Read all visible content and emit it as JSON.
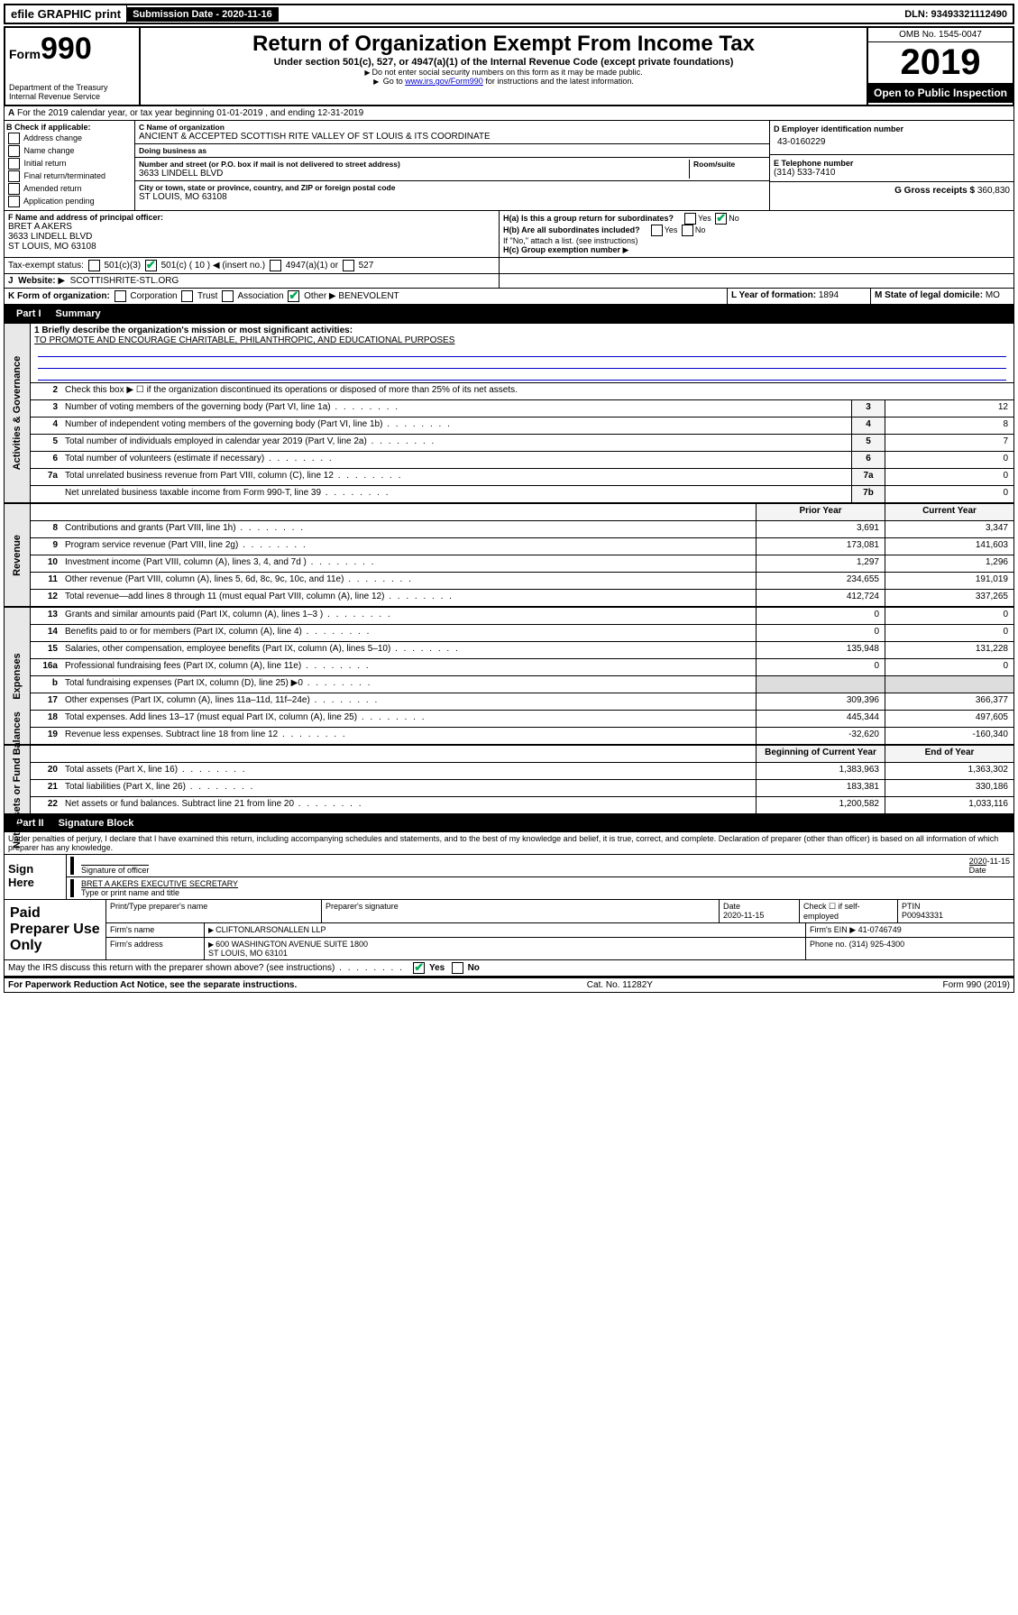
{
  "topbar": {
    "efile": "efile GRAPHIC print",
    "submission_label": "Submission Date - 2020-11-16",
    "dln": "DLN: 93493321112490"
  },
  "header": {
    "form_label": "Form",
    "form_num": "990",
    "dept": "Department of the Treasury\nInternal Revenue Service",
    "title": "Return of Organization Exempt From Income Tax",
    "subtitle": "Under section 501(c), 527, or 4947(a)(1) of the Internal Revenue Code (except private foundations)",
    "note1": "Do not enter social security numbers on this form as it may be made public.",
    "note2_pre": "Go to ",
    "note2_link": "www.irs.gov/Form990",
    "note2_post": " for instructions and the latest information.",
    "omb": "OMB No. 1545-0047",
    "year": "2019",
    "open": "Open to Public Inspection"
  },
  "row_a": "For the 2019 calendar year, or tax year beginning 01-01-2019   , and ending 12-31-2019",
  "box_b": {
    "label": "B Check if applicable:",
    "items": [
      "Address change",
      "Name change",
      "Initial return",
      "Final return/terminated",
      "Amended return",
      "Application pending"
    ]
  },
  "box_c": {
    "name_label": "C Name of organization",
    "name": "ANCIENT & ACCEPTED SCOTTISH RITE VALLEY OF ST LOUIS & ITS COORDINATE",
    "dba_label": "Doing business as",
    "addr_label": "Number and street (or P.O. box if mail is not delivered to street address)",
    "room_label": "Room/suite",
    "addr": "3633 LINDELL BLVD",
    "city_label": "City or town, state or province, country, and ZIP or foreign postal code",
    "city": "ST LOUIS, MO  63108"
  },
  "box_d": {
    "label": "D Employer identification number",
    "val": "43-0160229"
  },
  "box_e": {
    "label": "E Telephone number",
    "val": "(314) 533-7410"
  },
  "box_g": {
    "label": "G Gross receipts $",
    "val": "360,830"
  },
  "box_f": {
    "label": "F  Name and address of principal officer:",
    "name": "BRET A AKERS",
    "addr1": "3633 LINDELL BLVD",
    "addr2": "ST LOUIS, MO  63108"
  },
  "box_h": {
    "ha": "H(a)  Is this a group return for subordinates?",
    "hb": "H(b)  Are all subordinates included?",
    "hb_note": "If \"No,\" attach a list. (see instructions)",
    "hc": "H(c)  Group exemption number",
    "yes": "Yes",
    "no": "No"
  },
  "tax_exempt": {
    "label": "Tax-exempt status:",
    "c3": "501(c)(3)",
    "c": "501(c) ( 10 )",
    "insert": "(insert no.)",
    "a1": "4947(a)(1) or",
    "s527": "527"
  },
  "website": {
    "label": "Website:",
    "val": "SCOTTISHRITE-STL.ORG"
  },
  "row_k": {
    "label": "K Form of organization:",
    "opts": [
      "Corporation",
      "Trust",
      "Association",
      "Other"
    ],
    "other_val": "BENEVOLENT"
  },
  "row_l": {
    "label": "L Year of formation:",
    "val": "1894"
  },
  "row_m": {
    "label": "M State of legal domicile:",
    "val": "MO"
  },
  "part1": {
    "title": "Part I",
    "name": "Summary",
    "q1_label": "1  Briefly describe the organization's mission or most significant activities:",
    "q1_val": "TO PROMOTE AND ENCOURAGE CHARITABLE, PHILANTHROPIC, AND EDUCATIONAL PURPOSES",
    "q2": "Check this box ▶ ☐ if the organization discontinued its operations or disposed of more than 25% of its net assets.",
    "rows_gov": [
      {
        "n": "3",
        "d": "Number of voting members of the governing body (Part VI, line 1a)",
        "box": "3",
        "v": "12"
      },
      {
        "n": "4",
        "d": "Number of independent voting members of the governing body (Part VI, line 1b)",
        "box": "4",
        "v": "8"
      },
      {
        "n": "5",
        "d": "Total number of individuals employed in calendar year 2019 (Part V, line 2a)",
        "box": "5",
        "v": "7"
      },
      {
        "n": "6",
        "d": "Total number of volunteers (estimate if necessary)",
        "box": "6",
        "v": "0"
      },
      {
        "n": "7a",
        "d": "Total unrelated business revenue from Part VIII, column (C), line 12",
        "box": "7a",
        "v": "0"
      },
      {
        "n": "",
        "d": "Net unrelated business taxable income from Form 990-T, line 39",
        "box": "7b",
        "v": "0"
      }
    ],
    "col_prior": "Prior Year",
    "col_current": "Current Year",
    "rows_rev": [
      {
        "n": "8",
        "d": "Contributions and grants (Part VIII, line 1h)",
        "p": "3,691",
        "c": "3,347"
      },
      {
        "n": "9",
        "d": "Program service revenue (Part VIII, line 2g)",
        "p": "173,081",
        "c": "141,603"
      },
      {
        "n": "10",
        "d": "Investment income (Part VIII, column (A), lines 3, 4, and 7d )",
        "p": "1,297",
        "c": "1,296"
      },
      {
        "n": "11",
        "d": "Other revenue (Part VIII, column (A), lines 5, 6d, 8c, 9c, 10c, and 11e)",
        "p": "234,655",
        "c": "191,019"
      },
      {
        "n": "12",
        "d": "Total revenue—add lines 8 through 11 (must equal Part VIII, column (A), line 12)",
        "p": "412,724",
        "c": "337,265"
      }
    ],
    "rows_exp": [
      {
        "n": "13",
        "d": "Grants and similar amounts paid (Part IX, column (A), lines 1–3 )",
        "p": "0",
        "c": "0"
      },
      {
        "n": "14",
        "d": "Benefits paid to or for members (Part IX, column (A), line 4)",
        "p": "0",
        "c": "0"
      },
      {
        "n": "15",
        "d": "Salaries, other compensation, employee benefits (Part IX, column (A), lines 5–10)",
        "p": "135,948",
        "c": "131,228"
      },
      {
        "n": "16a",
        "d": "Professional fundraising fees (Part IX, column (A), line 11e)",
        "p": "0",
        "c": "0"
      },
      {
        "n": "b",
        "d": "Total fundraising expenses (Part IX, column (D), line 25) ▶0",
        "p": "",
        "c": ""
      },
      {
        "n": "17",
        "d": "Other expenses (Part IX, column (A), lines 11a–11d, 11f–24e)",
        "p": "309,396",
        "c": "366,377"
      },
      {
        "n": "18",
        "d": "Total expenses. Add lines 13–17 (must equal Part IX, column (A), line 25)",
        "p": "445,344",
        "c": "497,605"
      },
      {
        "n": "19",
        "d": "Revenue less expenses. Subtract line 18 from line 12",
        "p": "-32,620",
        "c": "-160,340"
      }
    ],
    "col_begin": "Beginning of Current Year",
    "col_end": "End of Year",
    "rows_net": [
      {
        "n": "20",
        "d": "Total assets (Part X, line 16)",
        "p": "1,383,963",
        "c": "1,363,302"
      },
      {
        "n": "21",
        "d": "Total liabilities (Part X, line 26)",
        "p": "183,381",
        "c": "330,186"
      },
      {
        "n": "22",
        "d": "Net assets or fund balances. Subtract line 21 from line 20",
        "p": "1,200,582",
        "c": "1,033,116"
      }
    ],
    "side_gov": "Activities & Governance",
    "side_rev": "Revenue",
    "side_exp": "Expenses",
    "side_net": "Net Assets or Fund Balances"
  },
  "part2": {
    "title": "Part II",
    "name": "Signature Block",
    "perjury": "Under penalties of perjury, I declare that I have examined this return, including accompanying schedules and statements, and to the best of my knowledge and belief, it is true, correct, and complete. Declaration of preparer (other than officer) is based on all information of which preparer has any knowledge."
  },
  "sign": {
    "label": "Sign Here",
    "sig_officer": "Signature of officer",
    "date": "2020-11-15",
    "date_label": "Date",
    "name": "BRET A AKERS  EXECUTIVE SECRETARY",
    "type_label": "Type or print name and title"
  },
  "paid": {
    "label": "Paid Preparer Use Only",
    "h1": "Print/Type preparer's name",
    "h2": "Preparer's signature",
    "h3": "Date",
    "h3v": "2020-11-15",
    "h4": "Check ☐ if self-employed",
    "h5": "PTIN",
    "h5v": "P00943331",
    "firm_name_label": "Firm's name",
    "firm_name": "CLIFTONLARSONALLEN LLP",
    "firm_ein_label": "Firm's EIN",
    "firm_ein": "41-0746749",
    "firm_addr_label": "Firm's address",
    "firm_addr": "600 WASHINGTON AVENUE SUITE 1800",
    "firm_city": "ST LOUIS, MO  63101",
    "phone_label": "Phone no.",
    "phone": "(314) 925-4300"
  },
  "discuss": {
    "q": "May the IRS discuss this return with the preparer shown above? (see instructions)",
    "yes": "Yes",
    "no": "No"
  },
  "footer": {
    "left": "For Paperwork Reduction Act Notice, see the separate instructions.",
    "mid": "Cat. No. 11282Y",
    "right": "Form 990 (2019)"
  }
}
